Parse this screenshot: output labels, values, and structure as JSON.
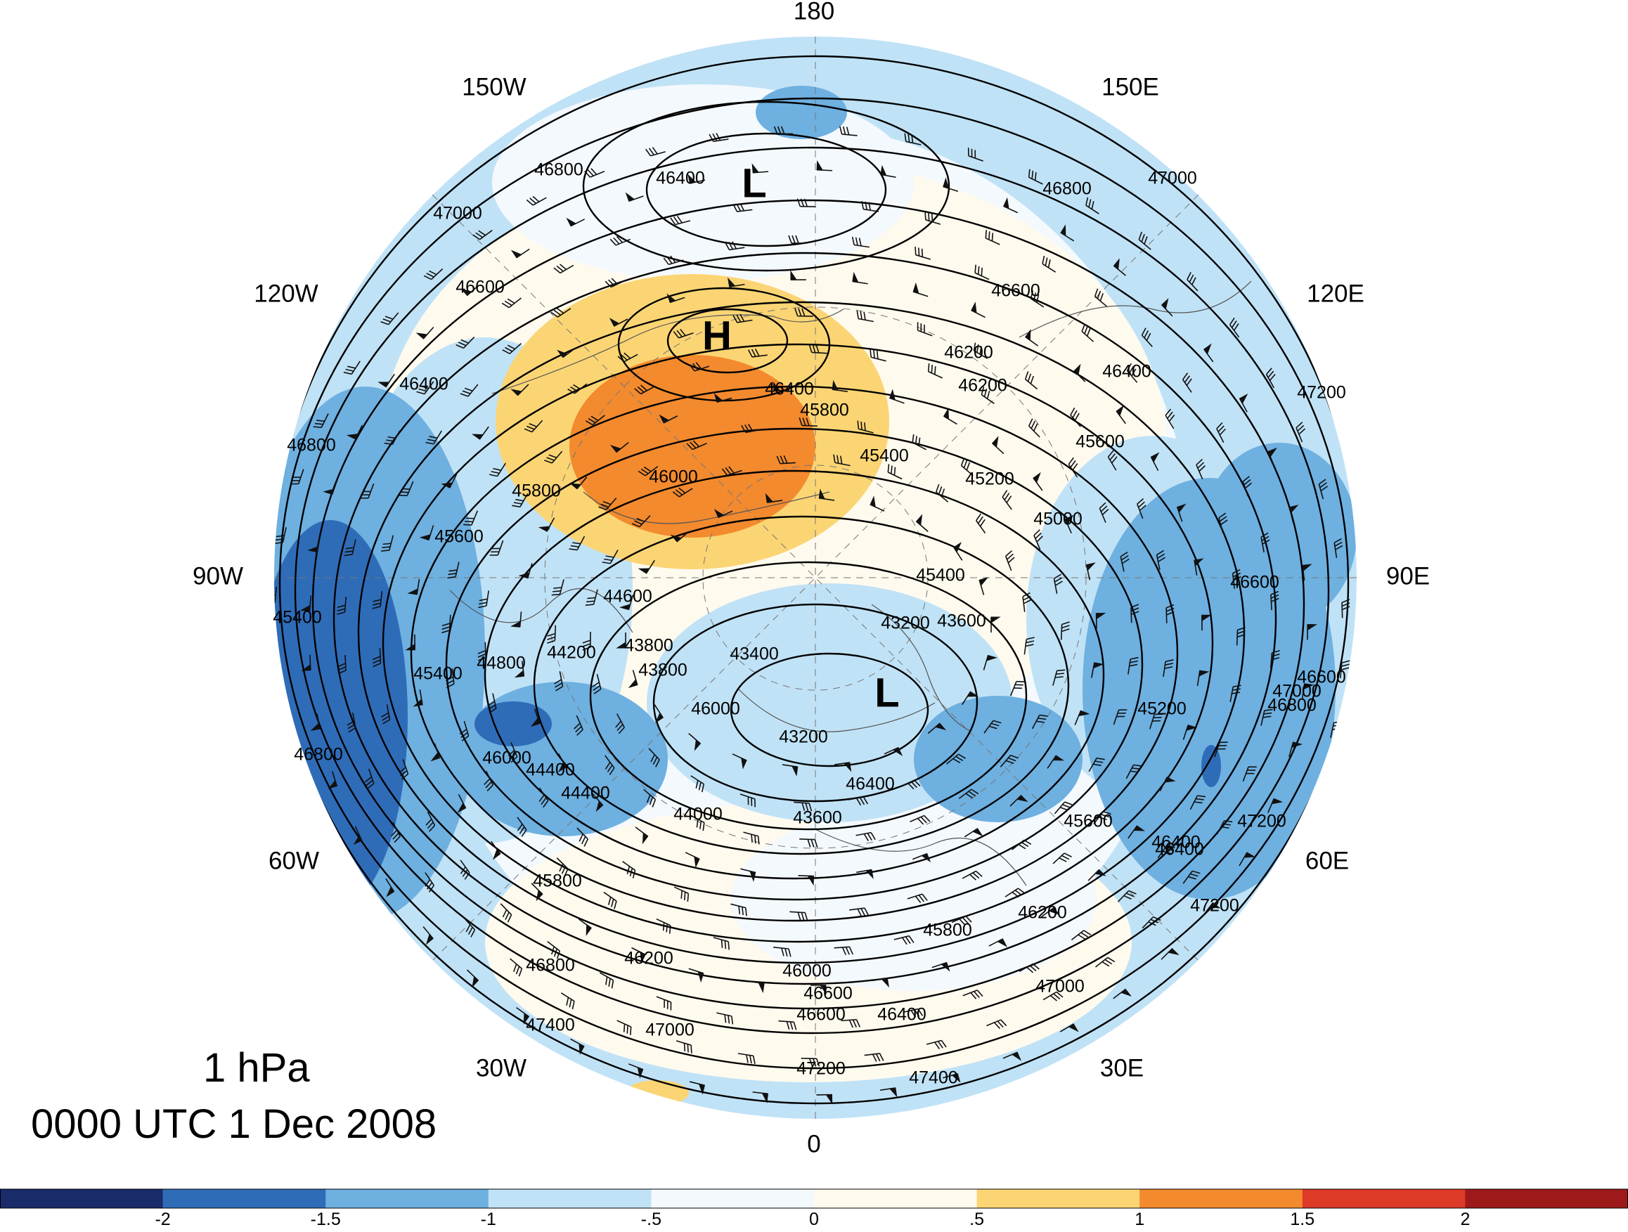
{
  "title": {
    "level": "1 hPa",
    "time": "0000 UTC 1 Dec 2008"
  },
  "longitude_labels": [
    "180",
    "150E",
    "120E",
    "90E",
    "60E",
    "30E",
    "0",
    "30W",
    "60W",
    "90W",
    "120W",
    "150W"
  ],
  "highs_lows": [
    {
      "symbol": "L",
      "location": "over the Aleutians / North Pacific"
    },
    {
      "symbol": "H",
      "location": "over northern Canada / Alaska"
    },
    {
      "symbol": "L",
      "location": "over Scandinavia / northern Europe"
    }
  ],
  "contour_labels": [
    "46400",
    "46800",
    "47000",
    "46600",
    "46800",
    "47000",
    "46600",
    "46200",
    "46400",
    "47200",
    "46400",
    "46800",
    "46200",
    "46400",
    "45800",
    "45600",
    "45000",
    "45400",
    "45200",
    "46000",
    "45800",
    "45600",
    "45400",
    "44600",
    "43600",
    "43200",
    "43400",
    "43800",
    "44400",
    "43800",
    "44200",
    "44800",
    "45400",
    "45200",
    "46000",
    "46000",
    "46600",
    "46800",
    "45400",
    "47000",
    "46600",
    "46400",
    "47200",
    "45600",
    "46400",
    "43200",
    "43600",
    "44000",
    "44400",
    "46400",
    "45800",
    "46200",
    "47000",
    "46800",
    "47400",
    "46200",
    "47000",
    "46600",
    "46800",
    "46000",
    "45800",
    "47400",
    "47200",
    "47200",
    "46600",
    "46400"
  ],
  "colorbar": {
    "labels": [
      "-2",
      "-1.5",
      "-1",
      "-.5",
      "0",
      ".5",
      "1",
      "1.5",
      "2"
    ],
    "colors": [
      "#1a2b6a",
      "#2f6cb8",
      "#6eb0e0",
      "#c0e2f6",
      "#f4f9fe",
      "#fffaee",
      "#fbd574",
      "#f38a2e",
      "#dd3a28",
      "#9e1a1a"
    ]
  }
}
